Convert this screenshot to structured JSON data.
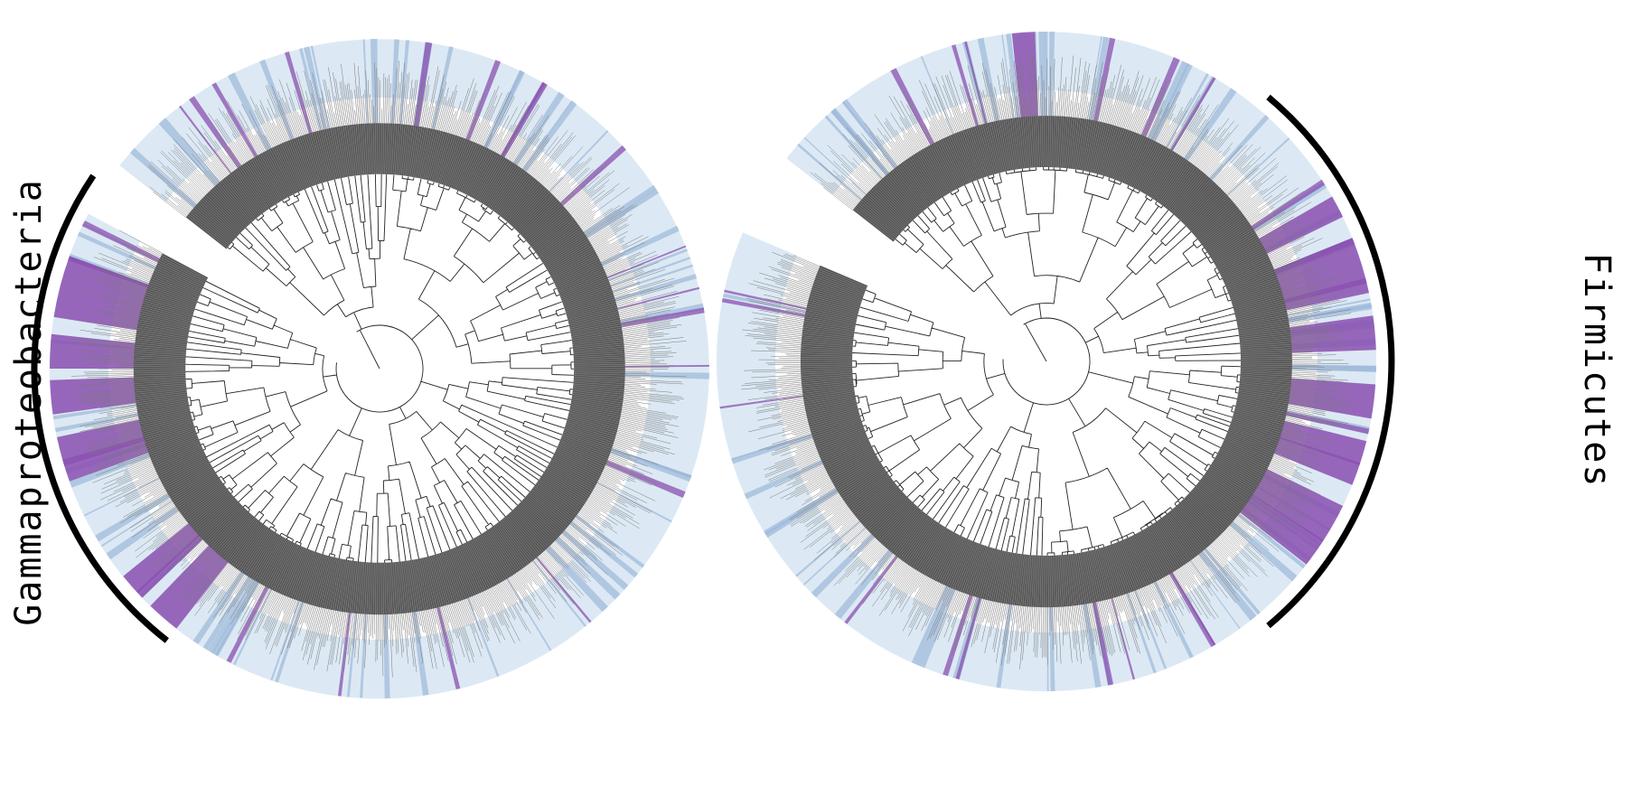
{
  "figure": {
    "left_tree": {
      "clade_label": "Gammaproteobacteria"
    },
    "right_tree": {
      "clade_label": "Firmicutes"
    }
  },
  "colors": {
    "background": "#ffffff",
    "ring_light_blue": "#dce9f4",
    "ring_blue": "#9db8d9",
    "highlight_purple": "#8a4fb0",
    "branch": "#222222",
    "branch_dense": "#555555",
    "label_text": "#7a7a7a",
    "clade_bar": "#000000"
  }
}
